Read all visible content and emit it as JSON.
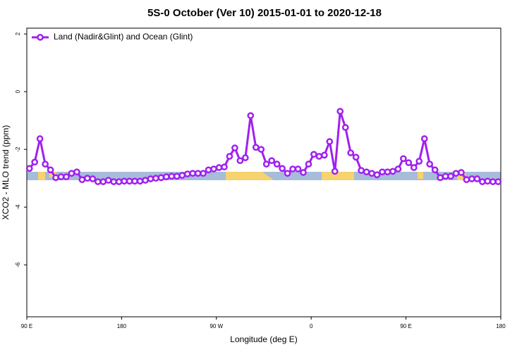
{
  "chart_data": {
    "type": "line",
    "title": "5S-0 October (Ver 10)   2015-01-01 to 2020-12-18",
    "xlabel": "Longitude (deg E)",
    "ylabel": "XCO2 - MLO trend (ppm)",
    "xlim": [
      90,
      540
    ],
    "xticks": [
      {
        "value": 90,
        "label": "90 E"
      },
      180,
      {
        "value": 270,
        "label": "90 W"
      },
      {
        "value": 360,
        "label": "0"
      },
      {
        "value": 450,
        "label": "90 E"
      },
      {
        "value": 540,
        "label": "180"
      }
    ],
    "ylim": [
      -7.8,
      2.2
    ],
    "yticks": [
      -6,
      -4,
      -2,
      0,
      2
    ],
    "legend": "top-left",
    "x": [
      92.5,
      97.5,
      102.5,
      107.5,
      112.5,
      117.5,
      122.5,
      127.5,
      132.5,
      137.5,
      142.5,
      147.5,
      152.5,
      157.5,
      162.5,
      167.5,
      172.5,
      177.5,
      182.5,
      187.5,
      192.5,
      197.5,
      202.5,
      207.5,
      212.5,
      217.5,
      222.5,
      227.5,
      232.5,
      237.5,
      242.5,
      247.5,
      252.5,
      257.5,
      262.5,
      267.5,
      272.5,
      277.5,
      282.5,
      287.5,
      292.5,
      297.5,
      302.5,
      307.5,
      312.5,
      317.5,
      322.5,
      327.5,
      332.5,
      337.5,
      342.5,
      347.5,
      352.5,
      357.5,
      362.5,
      367.5,
      372.5,
      377.5,
      382.5,
      387.5,
      392.5,
      397.5,
      402.5,
      407.5,
      412.5,
      417.5,
      422.5,
      427.5,
      432.5,
      437.5,
      442.5,
      447.5,
      452.5,
      457.5,
      462.5,
      467.5,
      472.5,
      477.5,
      482.5,
      487.5,
      492.5,
      497.5,
      502.5,
      507.5,
      512.5,
      517.5,
      522.5,
      527.5,
      532.5,
      537.5
    ],
    "series": [
      {
        "name": "Land (Nadir&Glint) and Ocean (Glint)",
        "color": "#a020f0",
        "values": [
          -2.66,
          -2.44,
          -1.63,
          -2.51,
          -2.71,
          -2.98,
          -2.95,
          -2.95,
          -2.83,
          -2.78,
          -3.05,
          -3.0,
          -3.02,
          -3.12,
          -3.12,
          -3.07,
          -3.12,
          -3.12,
          -3.1,
          -3.1,
          -3.1,
          -3.1,
          -3.07,
          -3.02,
          -3.0,
          -2.98,
          -2.95,
          -2.93,
          -2.93,
          -2.9,
          -2.85,
          -2.83,
          -2.83,
          -2.83,
          -2.71,
          -2.68,
          -2.63,
          -2.61,
          -2.24,
          -1.95,
          -2.39,
          -2.29,
          -0.83,
          -1.93,
          -2.0,
          -2.51,
          -2.39,
          -2.51,
          -2.66,
          -2.83,
          -2.68,
          -2.68,
          -2.8,
          -2.51,
          -2.17,
          -2.24,
          -2.2,
          -1.73,
          -2.76,
          -0.68,
          -1.24,
          -2.12,
          -2.27,
          -2.73,
          -2.78,
          -2.83,
          -2.88,
          -2.78,
          -2.78,
          -2.76,
          -2.68,
          -2.32,
          -2.46,
          -2.63,
          -2.41,
          -1.63,
          -2.51,
          -2.71,
          -2.98,
          -2.93,
          -2.93,
          -2.83,
          -2.8,
          -3.05,
          -3.02,
          -3.02,
          -3.12,
          -3.1,
          -3.12,
          -3.12
        ]
      }
    ]
  }
}
